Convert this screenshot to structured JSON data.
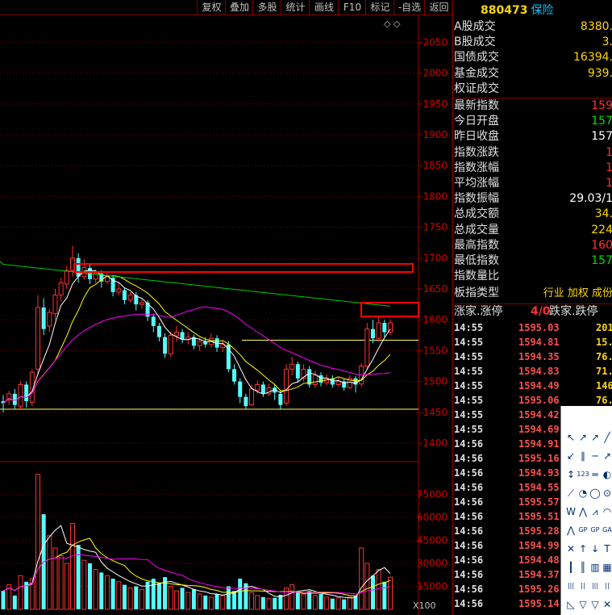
{
  "toolbar": {
    "buttons": [
      "复权",
      "叠加",
      "多股",
      "统计",
      "画线",
      "F10",
      "标记",
      "-自选",
      "返回"
    ]
  },
  "chart": {
    "price_axis_ticks": [
      "2050",
      "2000",
      "1950",
      "1900",
      "1850",
      "1800",
      "1750",
      "1700",
      "1650",
      "1600",
      "1550",
      "1500",
      "1450",
      "1400"
    ],
    "volume_axis_ticks": [
      "75000",
      "60000",
      "45000",
      "30000",
      "15000"
    ],
    "volume_unit": "X100",
    "corner_marker": "◇ ◇"
  },
  "chart_data": {
    "type": "candlestick",
    "title": "",
    "price_ylim": [
      1370,
      2095
    ],
    "volume_ylim": [
      0,
      91000
    ],
    "support_line": 1455,
    "mid_line": 1567,
    "candles": [
      {
        "o": 1468,
        "c": 1465,
        "h": 1478,
        "l": 1450,
        "v": 12000
      },
      {
        "o": 1470,
        "c": 1480,
        "h": 1485,
        "l": 1462,
        "v": 16000
      },
      {
        "o": 1480,
        "c": 1462,
        "h": 1488,
        "l": 1455,
        "v": 9000
      },
      {
        "o": 1460,
        "c": 1495,
        "h": 1500,
        "l": 1455,
        "v": 22000
      },
      {
        "o": 1495,
        "c": 1468,
        "h": 1500,
        "l": 1458,
        "v": 18000
      },
      {
        "o": 1466,
        "c": 1515,
        "h": 1520,
        "l": 1460,
        "v": 20000
      },
      {
        "o": 1520,
        "c": 1620,
        "h": 1640,
        "l": 1510,
        "v": 88000
      },
      {
        "o": 1620,
        "c": 1585,
        "h": 1635,
        "l": 1575,
        "v": 62000
      },
      {
        "o": 1590,
        "c": 1612,
        "h": 1618,
        "l": 1580,
        "v": 48000
      },
      {
        "o": 1610,
        "c": 1640,
        "h": 1650,
        "l": 1600,
        "v": 40000
      },
      {
        "o": 1640,
        "c": 1660,
        "h": 1668,
        "l": 1630,
        "v": 35000
      },
      {
        "o": 1658,
        "c": 1680,
        "h": 1688,
        "l": 1650,
        "v": 30000
      },
      {
        "o": 1680,
        "c": 1700,
        "h": 1720,
        "l": 1670,
        "v": 56000
      },
      {
        "o": 1700,
        "c": 1670,
        "h": 1708,
        "l": 1660,
        "v": 42000
      },
      {
        "o": 1670,
        "c": 1685,
        "h": 1698,
        "l": 1665,
        "v": 32000
      },
      {
        "o": 1684,
        "c": 1666,
        "h": 1690,
        "l": 1658,
        "v": 30000
      },
      {
        "o": 1666,
        "c": 1676,
        "h": 1682,
        "l": 1660,
        "v": 26000
      },
      {
        "o": 1675,
        "c": 1662,
        "h": 1680,
        "l": 1652,
        "v": 24000
      },
      {
        "o": 1662,
        "c": 1670,
        "h": 1676,
        "l": 1658,
        "v": 22000
      },
      {
        "o": 1668,
        "c": 1645,
        "h": 1672,
        "l": 1638,
        "v": 20000
      },
      {
        "o": 1645,
        "c": 1650,
        "h": 1660,
        "l": 1640,
        "v": 18000
      },
      {
        "o": 1648,
        "c": 1632,
        "h": 1652,
        "l": 1625,
        "v": 16000
      },
      {
        "o": 1632,
        "c": 1640,
        "h": 1645,
        "l": 1628,
        "v": 14000
      },
      {
        "o": 1640,
        "c": 1625,
        "h": 1645,
        "l": 1615,
        "v": 15000
      },
      {
        "o": 1625,
        "c": 1628,
        "h": 1634,
        "l": 1618,
        "v": 13000
      },
      {
        "o": 1628,
        "c": 1605,
        "h": 1632,
        "l": 1598,
        "v": 18000
      },
      {
        "o": 1605,
        "c": 1590,
        "h": 1610,
        "l": 1580,
        "v": 20000
      },
      {
        "o": 1590,
        "c": 1572,
        "h": 1595,
        "l": 1565,
        "v": 17000
      },
      {
        "o": 1572,
        "c": 1545,
        "h": 1578,
        "l": 1538,
        "v": 21000
      },
      {
        "o": 1545,
        "c": 1575,
        "h": 1580,
        "l": 1540,
        "v": 15000
      },
      {
        "o": 1574,
        "c": 1580,
        "h": 1590,
        "l": 1565,
        "v": 12000
      },
      {
        "o": 1580,
        "c": 1568,
        "h": 1585,
        "l": 1562,
        "v": 14000
      },
      {
        "o": 1568,
        "c": 1572,
        "h": 1580,
        "l": 1560,
        "v": 11000
      },
      {
        "o": 1572,
        "c": 1558,
        "h": 1576,
        "l": 1552,
        "v": 13000
      },
      {
        "o": 1558,
        "c": 1565,
        "h": 1570,
        "l": 1550,
        "v": 10000
      },
      {
        "o": 1565,
        "c": 1560,
        "h": 1572,
        "l": 1555,
        "v": 9000
      },
      {
        "o": 1560,
        "c": 1570,
        "h": 1578,
        "l": 1555,
        "v": 8000
      },
      {
        "o": 1570,
        "c": 1555,
        "h": 1575,
        "l": 1548,
        "v": 10000
      },
      {
        "o": 1555,
        "c": 1560,
        "h": 1566,
        "l": 1548,
        "v": 9000
      },
      {
        "o": 1560,
        "c": 1520,
        "h": 1565,
        "l": 1515,
        "v": 15000
      },
      {
        "o": 1520,
        "c": 1500,
        "h": 1528,
        "l": 1495,
        "v": 12000
      },
      {
        "o": 1500,
        "c": 1475,
        "h": 1505,
        "l": 1465,
        "v": 20000
      },
      {
        "o": 1475,
        "c": 1460,
        "h": 1480,
        "l": 1455,
        "v": 17000
      },
      {
        "o": 1462,
        "c": 1488,
        "h": 1495,
        "l": 1460,
        "v": 11000
      },
      {
        "o": 1486,
        "c": 1495,
        "h": 1502,
        "l": 1480,
        "v": 9000
      },
      {
        "o": 1495,
        "c": 1480,
        "h": 1500,
        "l": 1475,
        "v": 8000
      },
      {
        "o": 1480,
        "c": 1490,
        "h": 1496,
        "l": 1476,
        "v": 7000
      },
      {
        "o": 1490,
        "c": 1482,
        "h": 1495,
        "l": 1470,
        "v": 7500
      },
      {
        "o": 1480,
        "c": 1462,
        "h": 1485,
        "l": 1455,
        "v": 9500
      },
      {
        "o": 1465,
        "c": 1520,
        "h": 1528,
        "l": 1460,
        "v": 14000
      },
      {
        "o": 1520,
        "c": 1528,
        "h": 1540,
        "l": 1510,
        "v": 16000
      },
      {
        "o": 1528,
        "c": 1505,
        "h": 1532,
        "l": 1498,
        "v": 12000
      },
      {
        "o": 1505,
        "c": 1520,
        "h": 1528,
        "l": 1500,
        "v": 10000
      },
      {
        "o": 1520,
        "c": 1495,
        "h": 1525,
        "l": 1490,
        "v": 12000
      },
      {
        "o": 1495,
        "c": 1510,
        "h": 1518,
        "l": 1490,
        "v": 9000
      },
      {
        "o": 1510,
        "c": 1498,
        "h": 1515,
        "l": 1492,
        "v": 10000
      },
      {
        "o": 1498,
        "c": 1505,
        "h": 1512,
        "l": 1494,
        "v": 8000
      },
      {
        "o": 1505,
        "c": 1495,
        "h": 1510,
        "l": 1490,
        "v": 7000
      },
      {
        "o": 1495,
        "c": 1500,
        "h": 1506,
        "l": 1492,
        "v": 7500
      },
      {
        "o": 1500,
        "c": 1490,
        "h": 1504,
        "l": 1485,
        "v": 6500
      },
      {
        "o": 1490,
        "c": 1505,
        "h": 1510,
        "l": 1488,
        "v": 8000
      },
      {
        "o": 1505,
        "c": 1495,
        "h": 1509,
        "l": 1482,
        "v": 9000
      },
      {
        "o": 1496,
        "c": 1525,
        "h": 1530,
        "l": 1492,
        "v": 40000
      },
      {
        "o": 1525,
        "c": 1585,
        "h": 1595,
        "l": 1520,
        "v": 30000
      },
      {
        "o": 1585,
        "c": 1570,
        "h": 1600,
        "l": 1562,
        "v": 22000
      },
      {
        "o": 1570,
        "c": 1595,
        "h": 1605,
        "l": 1565,
        "v": 26000
      },
      {
        "o": 1595,
        "c": 1580,
        "h": 1600,
        "l": 1572,
        "v": 18000
      },
      {
        "o": 1580,
        "c": 1595,
        "h": 1600,
        "l": 1575,
        "v": 21000
      }
    ],
    "ma_lines": [
      {
        "name": "",
        "color": "#ffffff"
      },
      {
        "name": "",
        "color": "#ffff00"
      },
      {
        "name": "",
        "color": "#ff00ff"
      },
      {
        "name": "",
        "color": "#00cc00"
      }
    ]
  },
  "right": {
    "code": "880473",
    "name": "保险",
    "market_rows": [
      {
        "label": "A股成交",
        "value": "8380.",
        "color": "#ffd700"
      },
      {
        "label": "B股成交",
        "value": "3.",
        "color": "#ffd700"
      },
      {
        "label": "国债成交",
        "value": "16394.",
        "color": "#ffd700"
      },
      {
        "label": "基金成交",
        "value": "939.",
        "color": "#ffd700"
      },
      {
        "label": "权证成交",
        "value": "",
        "color": "#ffd700"
      }
    ],
    "index_rows": [
      {
        "label": "最新指数",
        "value": "159",
        "color": "#ff3030"
      },
      {
        "label": "今日开盘",
        "value": "157",
        "color": "#00e000"
      },
      {
        "label": "昨日收盘",
        "value": "157",
        "color": "#ffffff"
      },
      {
        "label": "指数涨跌",
        "value": "1",
        "color": "#ff3030"
      },
      {
        "label": "指数涨幅",
        "value": "1",
        "color": "#ff3030"
      },
      {
        "label": "平均涨幅",
        "value": "1",
        "color": "#ff3030"
      },
      {
        "label": "指数振幅",
        "value": "29.03/1",
        "color": "#ffffff"
      },
      {
        "label": "总成交额",
        "value": "34.",
        "color": "#ffd700"
      },
      {
        "label": "总成交量",
        "value": "224",
        "color": "#ffd700"
      },
      {
        "label": "最高指数",
        "value": "160",
        "color": "#ff3030"
      },
      {
        "label": "最低指数",
        "value": "157",
        "color": "#00e000"
      },
      {
        "label": "指数量比",
        "value": "",
        "color": "#ffd700"
      }
    ],
    "sector_type_label": "板指类型",
    "sector_type_value": "行业 加权 成份",
    "updown_left": "涨家.涨停",
    "updown_mid": "4/0",
    "updown_right": "跌家.跌停",
    "ticks": [
      {
        "t": "14:55",
        "p": "1595.03",
        "v": "201"
      },
      {
        "t": "14:55",
        "p": "1594.81",
        "v": "15."
      },
      {
        "t": "14:55",
        "p": "1594.35",
        "v": "76."
      },
      {
        "t": "14:55",
        "p": "1594.83",
        "v": "71."
      },
      {
        "t": "14:55",
        "p": "1594.49",
        "v": "146"
      },
      {
        "t": "14:55",
        "p": "1595.06",
        "v": "76."
      },
      {
        "t": "14:55",
        "p": "1594.42",
        "v": ""
      },
      {
        "t": "14:55",
        "p": "1594.69",
        "v": ""
      },
      {
        "t": "14:56",
        "p": "1594.91",
        "v": ""
      },
      {
        "t": "14:56",
        "p": "1595.16",
        "v": ""
      },
      {
        "t": "14:56",
        "p": "1594.93",
        "v": ""
      },
      {
        "t": "14:56",
        "p": "1594.55",
        "v": ""
      },
      {
        "t": "14:56",
        "p": "1595.57",
        "v": ""
      },
      {
        "t": "14:56",
        "p": "1595.51",
        "v": ""
      },
      {
        "t": "14:56",
        "p": "1595.28",
        "v": ""
      },
      {
        "t": "14:56",
        "p": "1594.99",
        "v": ""
      },
      {
        "t": "14:56",
        "p": "1594.48",
        "v": ""
      },
      {
        "t": "14:56",
        "p": "1594.37",
        "v": ""
      },
      {
        "t": "14:56",
        "p": "1595.26",
        "v": ""
      },
      {
        "t": "14:56",
        "p": "1595.14",
        "v": ""
      }
    ]
  },
  "draw_tools": [
    "pointer-icon",
    "line-icon",
    "ray-icon",
    "segment-icon",
    "arrow-icon",
    "parallel-icon",
    "horizontal-icon",
    "extend-icon",
    "vertical-icon",
    "fib-icon",
    "price-line-icon",
    "gann-icon",
    "bracket-icon",
    "arc-icon",
    "circle-icon",
    "ellipse-icon",
    "wave-icon",
    "zigzag-icon",
    "fan-icon",
    "cycle-icon",
    "pattern-icon",
    "gp-icon",
    "gp2-icon",
    "ga-icon",
    "cross-icon",
    "arrow-up-icon",
    "arrow-down-icon",
    "text-icon",
    "bar-icon",
    "bars-icon",
    "comb-icon",
    "grid-icon",
    "barcode-icon",
    "barcode2-icon",
    "barcode3-icon",
    "barcode4-icon",
    "triangle-icon",
    "down-arrow-icon",
    "down-triangle-icon",
    "delete-icon"
  ],
  "draw_tool_glyphs": [
    "↖",
    "↗",
    "↗",
    "╱",
    "↙",
    "∥",
    "─",
    "↗",
    "↕",
    "123",
    "═",
    "◐",
    "⟋",
    "◔",
    "◯",
    "⊙",
    "W",
    "⋀",
    "⩘",
    "◠",
    "⋀",
    "GP",
    "GP",
    "GA",
    "✕",
    "↑",
    "↓",
    "T",
    "┃",
    "║",
    "▥",
    "▦",
    "|||",
    "||",
    "|||",
    "||",
    "◺",
    "▽",
    "▽",
    "✕"
  ],
  "colors": {
    "up": "#ff3232",
    "down": "#54ffff",
    "grid": "#800000",
    "axis_text": "#d00000",
    "annotation": "#ff0000"
  }
}
